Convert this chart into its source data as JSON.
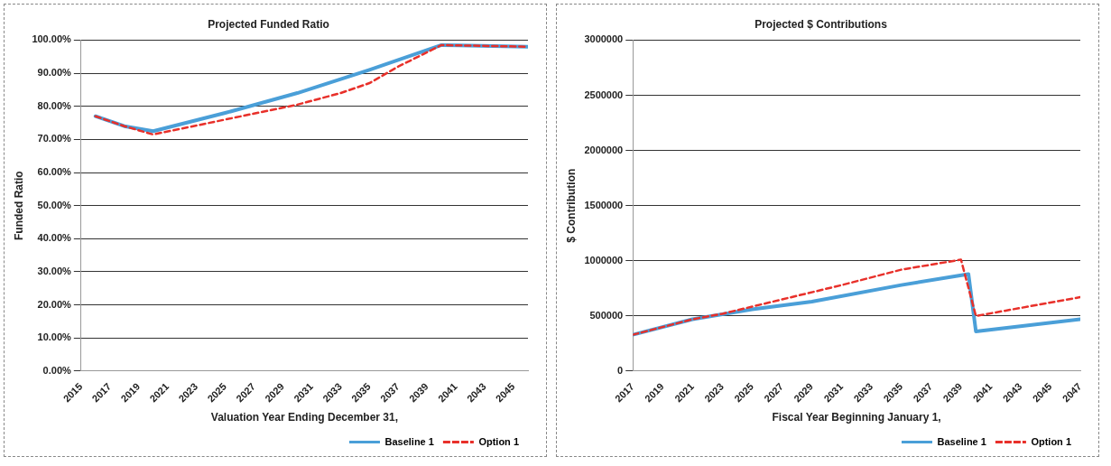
{
  "chart_data": [
    {
      "type": "line",
      "title": "Projected Funded Ratio",
      "xlabel": "Valuation Year Ending December 31,",
      "ylabel": "Funded Ratio",
      "xlim": [
        2015,
        2046
      ],
      "xticks": [
        2015,
        2017,
        2019,
        2021,
        2023,
        2025,
        2027,
        2029,
        2031,
        2033,
        2035,
        2037,
        2039,
        2041,
        2043,
        2045
      ],
      "ylim": [
        0,
        100
      ],
      "yticks": [
        {
          "value": 0,
          "label": "0.00%"
        },
        {
          "value": 10,
          "label": "10.00%"
        },
        {
          "value": 20,
          "label": "20.00%"
        },
        {
          "value": 30,
          "label": "30.00%"
        },
        {
          "value": 40,
          "label": "40.00%"
        },
        {
          "value": 50,
          "label": "50.00%"
        },
        {
          "value": 60,
          "label": "60.00%"
        },
        {
          "value": 70,
          "label": "70.00%"
        },
        {
          "value": 80,
          "label": "80.00%"
        },
        {
          "value": 90,
          "label": "90.00%"
        },
        {
          "value": 100,
          "label": "100.00%"
        }
      ],
      "grid": "y",
      "legend": "bottom right",
      "marker": "none",
      "series": [
        {
          "name": "Baseline 1",
          "color": "#4a9fd8",
          "line_style": "solid",
          "x": [
            2016,
            2018,
            2020,
            2025,
            2030,
            2035,
            2040,
            2046
          ],
          "values": [
            77,
            74,
            72.5,
            78,
            84,
            91,
            98.5,
            98
          ]
        },
        {
          "name": "Option 1",
          "color": "#e8302a",
          "line_style": "dashed",
          "x": [
            2016,
            2018,
            2020,
            2025,
            2030,
            2033,
            2035,
            2037,
            2040,
            2046
          ],
          "values": [
            77,
            74,
            71.5,
            76,
            80.5,
            84,
            87,
            92,
            98.5,
            98
          ]
        }
      ]
    },
    {
      "type": "line",
      "title": "Projected $ Contributions",
      "xlabel": "Fiscal Year Beginning January 1,",
      "ylabel": "$ Contribution",
      "xlim": [
        2017,
        2047
      ],
      "xticks": [
        2017,
        2019,
        2021,
        2023,
        2025,
        2027,
        2029,
        2031,
        2033,
        2035,
        2037,
        2039,
        2041,
        2043,
        2045,
        2047
      ],
      "ylim": [
        0,
        3000000
      ],
      "yticks": [
        0,
        500000,
        1000000,
        1500000,
        2000000,
        2500000,
        3000000
      ],
      "grid": "y",
      "legend": "bottom right",
      "marker": "none",
      "series": [
        {
          "name": "Baseline 1",
          "color": "#4a9fd8",
          "line_style": "solid",
          "x": [
            2017,
            2021,
            2025,
            2029,
            2035,
            2039.5,
            2040,
            2047
          ],
          "values": [
            330000,
            470000,
            560000,
            630000,
            780000,
            880000,
            360000,
            470000
          ]
        },
        {
          "name": "Option 1",
          "color": "#e8302a",
          "line_style": "dashed",
          "x": [
            2017,
            2021,
            2023,
            2027,
            2031,
            2035,
            2039,
            2040,
            2047
          ],
          "values": [
            330000,
            470000,
            520000,
            650000,
            780000,
            920000,
            1010000,
            500000,
            670000
          ]
        }
      ]
    }
  ]
}
